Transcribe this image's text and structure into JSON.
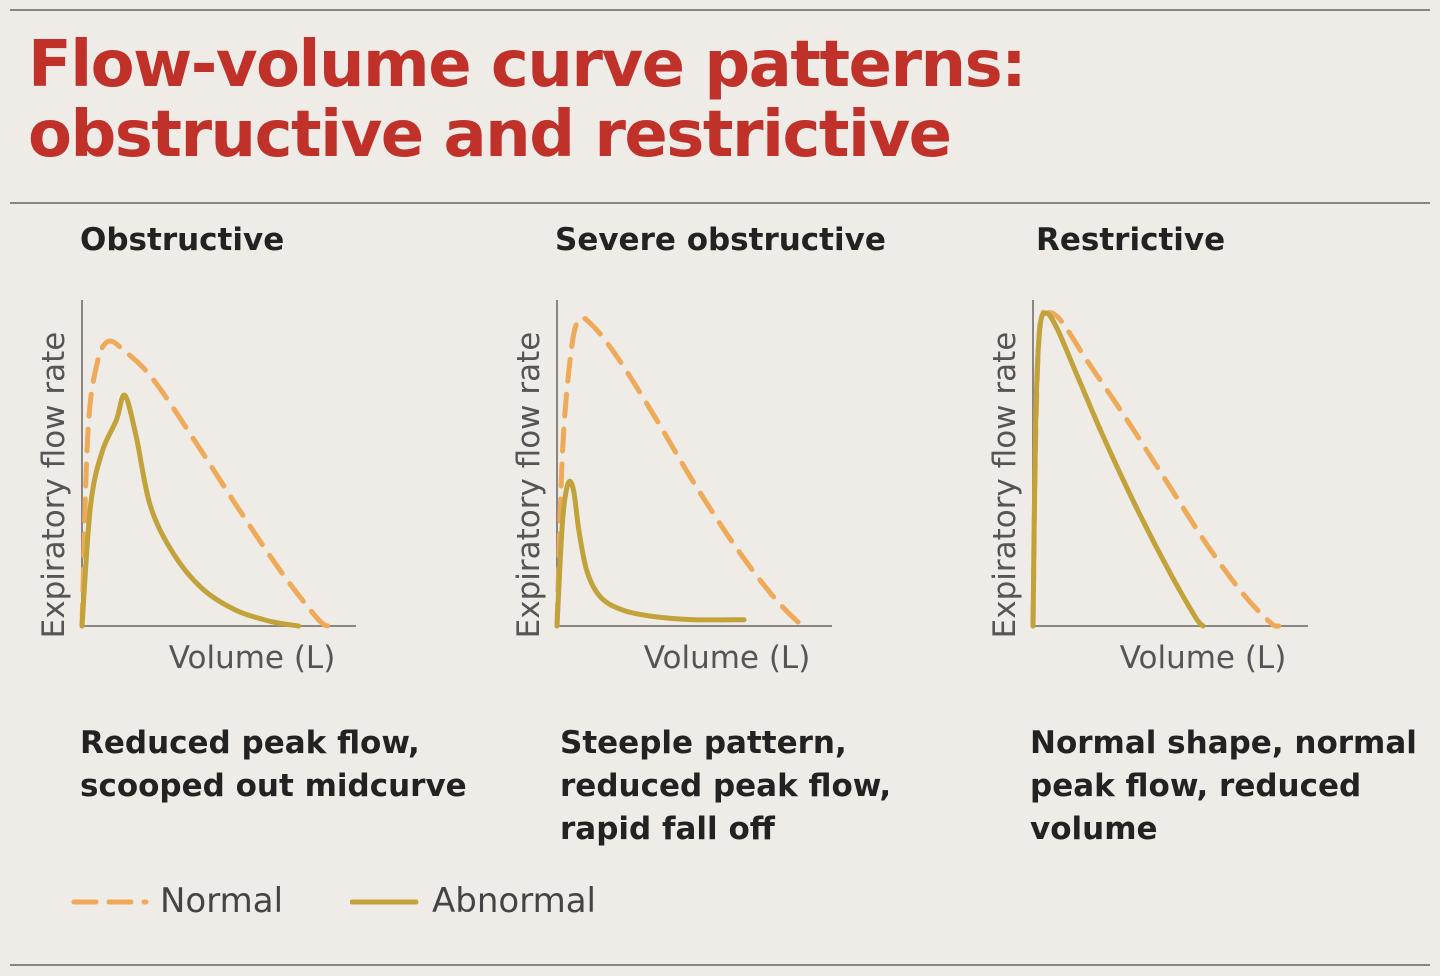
{
  "title": "Flow-volume curve patterns: obstructive and restrictive",
  "colors": {
    "title": "#c0312a",
    "background": "#efebe6",
    "normal": "#eeaa58",
    "abnormal": "#c2a23a"
  },
  "panels": [
    {
      "title": "Obstructive",
      "description": "Reduced peak flow, scooped out midcurve"
    },
    {
      "title": "Severe obstructive",
      "description": "Steeple pattern, reduced peak flow, rapid fall off"
    },
    {
      "title": "Restrictive",
      "description": "Normal shape, normal peak flow, reduced volume"
    }
  ],
  "legend": {
    "normal": "Normal",
    "abnormal": "Abnormal"
  },
  "chart_data": [
    {
      "type": "line",
      "title": "Obstructive",
      "xlabel": "Volume (L)",
      "ylabel": "Expiratory flow rate",
      "xlim": [
        0,
        1
      ],
      "ylim": [
        0,
        1
      ],
      "grid": false,
      "legend": "bottom-left",
      "series": [
        {
          "name": "Normal",
          "style": "dashed",
          "x": [
            0,
            0.02,
            0.05,
            0.09,
            0.15,
            0.25,
            0.4,
            0.55,
            0.7,
            0.83,
            0.87
          ],
          "y": [
            0,
            0.6,
            0.82,
            0.9,
            0.87,
            0.78,
            0.58,
            0.37,
            0.17,
            0.02,
            0
          ]
        },
        {
          "name": "Abnormal",
          "style": "solid",
          "x": [
            0,
            0.03,
            0.07,
            0.12,
            0.15,
            0.19,
            0.24,
            0.32,
            0.42,
            0.54,
            0.66,
            0.76
          ],
          "y": [
            0,
            0.38,
            0.55,
            0.65,
            0.73,
            0.6,
            0.38,
            0.23,
            0.12,
            0.05,
            0.015,
            0
          ]
        }
      ]
    },
    {
      "type": "line",
      "title": "Severe obstructive",
      "xlabel": "Volume (L)",
      "ylabel": "Expiratory flow rate",
      "xlim": [
        0,
        1
      ],
      "ylim": [
        0,
        1
      ],
      "grid": false,
      "legend": "bottom-left",
      "series": [
        {
          "name": "Normal",
          "style": "dashed",
          "x": [
            0,
            0.02,
            0.05,
            0.08,
            0.13,
            0.22,
            0.35,
            0.5,
            0.65,
            0.78,
            0.88,
            0.91
          ],
          "y": [
            0,
            0.55,
            0.86,
            0.97,
            0.95,
            0.85,
            0.67,
            0.45,
            0.25,
            0.1,
            0.01,
            0
          ]
        },
        {
          "name": "Abnormal",
          "style": "solid",
          "x": [
            0,
            0.02,
            0.04,
            0.06,
            0.08,
            0.11,
            0.16,
            0.24,
            0.35,
            0.5,
            0.68
          ],
          "y": [
            0,
            0.33,
            0.45,
            0.43,
            0.3,
            0.17,
            0.09,
            0.05,
            0.03,
            0.02,
            0.02
          ]
        }
      ]
    },
    {
      "type": "line",
      "title": "Restrictive",
      "xlabel": "Volume (L)",
      "ylabel": "Expiratory flow rate",
      "xlim": [
        0,
        1
      ],
      "ylim": [
        0,
        1
      ],
      "grid": false,
      "legend": "bottom-left",
      "series": [
        {
          "name": "Normal",
          "style": "dashed",
          "x": [
            0,
            0.01,
            0.025,
            0.05,
            0.1,
            0.2,
            0.35,
            0.5,
            0.65,
            0.78,
            0.88,
            0.91
          ],
          "y": [
            0,
            0.6,
            0.95,
            0.99,
            0.97,
            0.84,
            0.65,
            0.45,
            0.25,
            0.1,
            0.01,
            0
          ]
        },
        {
          "name": "Abnormal",
          "style": "solid",
          "x": [
            0,
            0.01,
            0.025,
            0.05,
            0.09,
            0.16,
            0.26,
            0.38,
            0.5,
            0.6,
            0.63
          ],
          "y": [
            0,
            0.65,
            0.94,
            0.99,
            0.94,
            0.8,
            0.6,
            0.38,
            0.18,
            0.03,
            0
          ]
        }
      ]
    }
  ]
}
